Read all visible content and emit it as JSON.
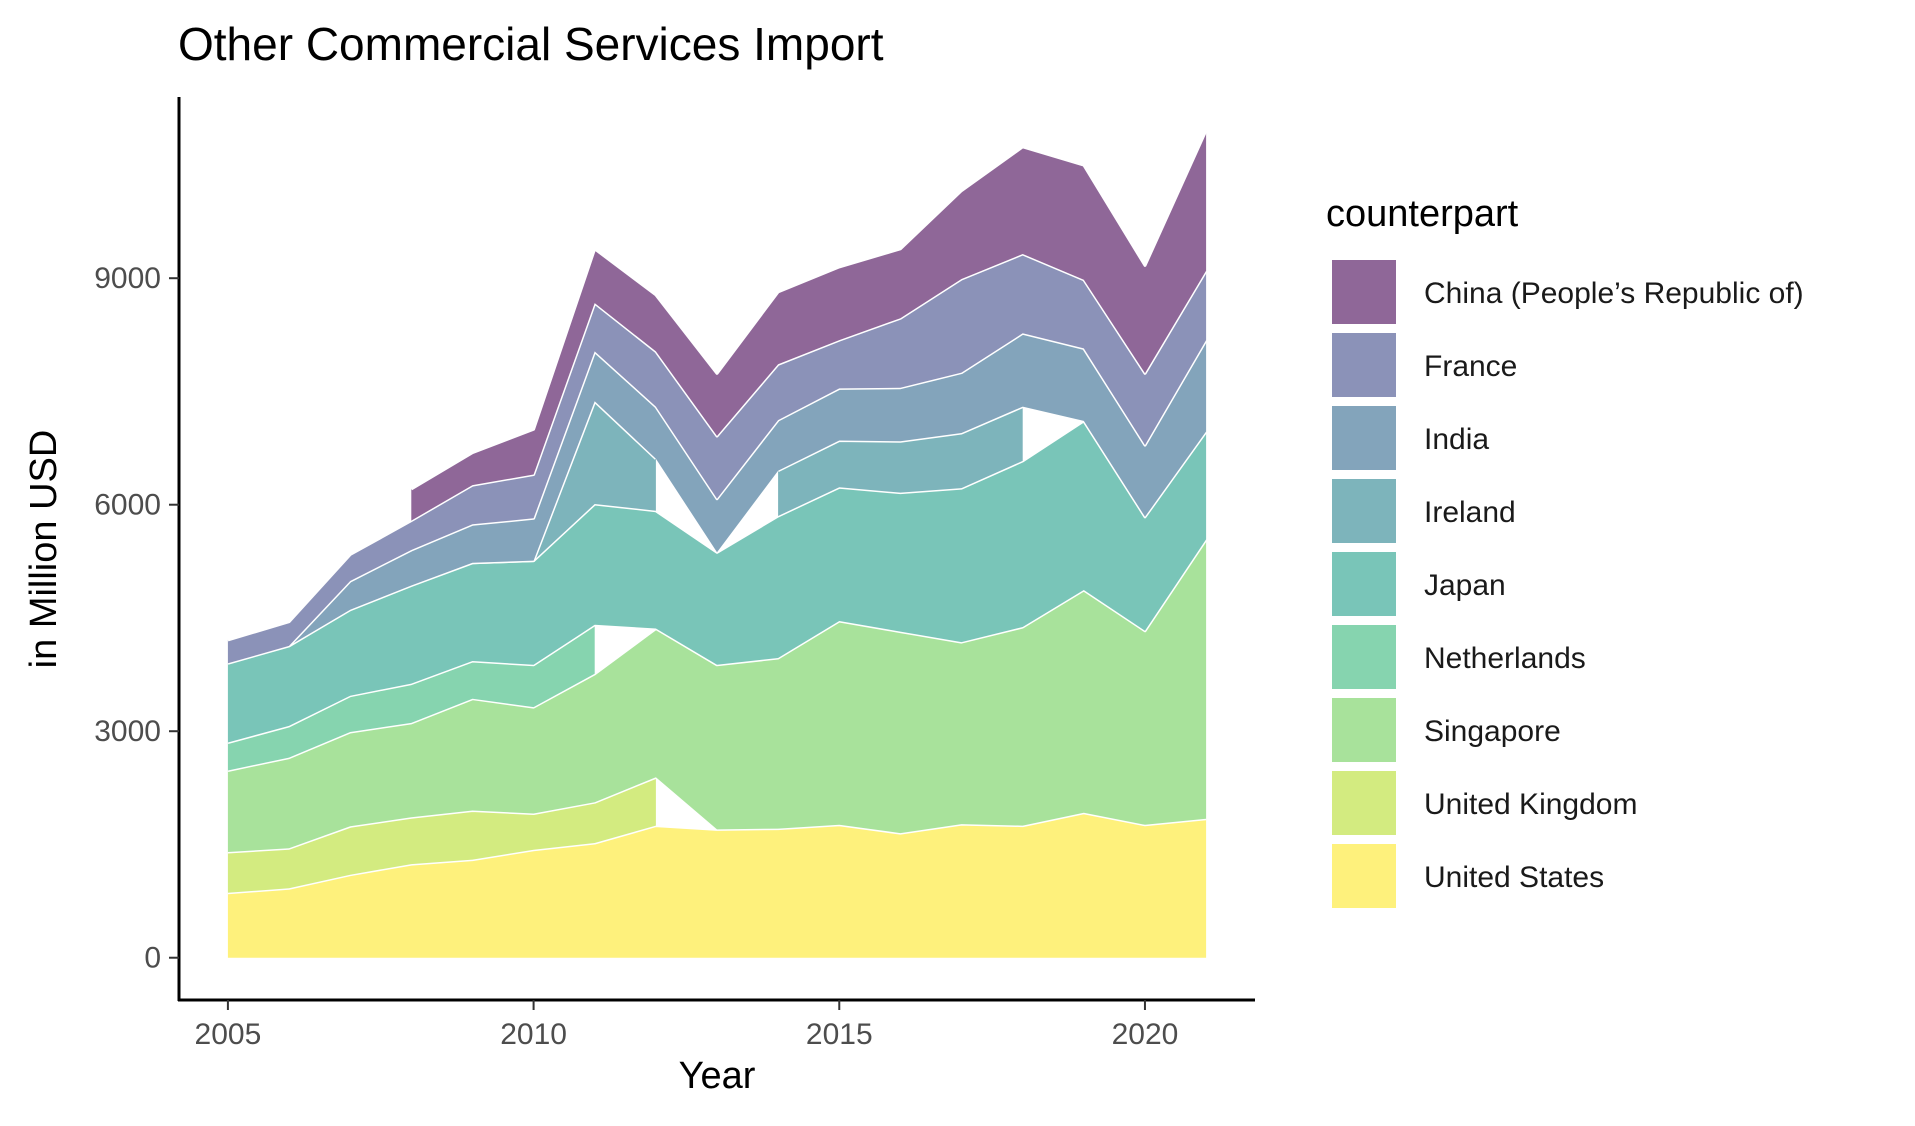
{
  "chart_data": {
    "type": "area",
    "title": "Other Commercial Services Import",
    "xlabel": "Year",
    "ylabel": "in Million USD",
    "xlim": [
      2004.2,
      2021.8
    ],
    "ylim": [
      -560,
      11400
    ],
    "xticks": [
      "2005",
      "2010",
      "2015",
      "2020"
    ],
    "yticks": [
      "0",
      "3000",
      "6000",
      "9000"
    ],
    "grid": false,
    "stacked": true,
    "legend": {
      "title": "counterpart",
      "position": "right",
      "entries": [
        "China (People’s Republic of)",
        "France",
        "India",
        "Ireland",
        "Japan",
        "Netherlands",
        "Singapore",
        "United Kingdom",
        "United States"
      ]
    },
    "series": [
      {
        "name": "United States",
        "color": "#FDE725",
        "points": [
          [
            2005,
            860
          ],
          [
            2006,
            920
          ],
          [
            2007,
            1100
          ],
          [
            2008,
            1240
          ],
          [
            2009,
            1300
          ],
          [
            2010,
            1430
          ],
          [
            2011,
            1520
          ],
          [
            2012,
            1750
          ],
          [
            2013,
            1700
          ],
          [
            2014,
            1710
          ],
          [
            2015,
            1760
          ],
          [
            2016,
            1650
          ],
          [
            2017,
            1770
          ],
          [
            2018,
            1750
          ],
          [
            2019,
            1920
          ],
          [
            2020,
            1760
          ],
          [
            2021,
            1840
          ]
        ]
      },
      {
        "name": "United Kingdom",
        "color": "#B5DE2B",
        "points": [
          [
            2005,
            540
          ],
          [
            2006,
            530
          ],
          [
            2007,
            640
          ],
          [
            2008,
            620
          ],
          [
            2009,
            650
          ],
          [
            2010,
            480
          ],
          [
            2011,
            540
          ],
          [
            2012,
            640
          ]
        ]
      },
      {
        "name": "Singapore",
        "color": "#6ECE58",
        "points": [
          [
            2005,
            1080
          ],
          [
            2006,
            1200
          ],
          [
            2007,
            1250
          ],
          [
            2008,
            1250
          ],
          [
            2009,
            1480
          ],
          [
            2010,
            1410
          ],
          [
            2011,
            1700
          ],
          [
            2012,
            1970
          ],
          [
            2013,
            2180
          ],
          [
            2014,
            2260
          ],
          [
            2015,
            2700
          ],
          [
            2016,
            2670
          ],
          [
            2017,
            2410
          ],
          [
            2018,
            2630
          ],
          [
            2019,
            2950
          ],
          [
            2020,
            2570
          ],
          [
            2021,
            3700
          ]
        ]
      },
      {
        "name": "Netherlands",
        "color": "#35B779",
        "points": [
          [
            2005,
            370
          ],
          [
            2006,
            420
          ],
          [
            2007,
            480
          ],
          [
            2008,
            520
          ],
          [
            2009,
            500
          ],
          [
            2010,
            560
          ],
          [
            2011,
            650
          ]
        ]
      },
      {
        "name": "Japan",
        "color": "#1F9E89",
        "points": [
          [
            2005,
            1050
          ],
          [
            2006,
            1060
          ],
          [
            2007,
            1140
          ],
          [
            2008,
            1300
          ],
          [
            2009,
            1300
          ],
          [
            2010,
            1380
          ],
          [
            2011,
            1600
          ],
          [
            2012,
            1560
          ],
          [
            2013,
            1490
          ],
          [
            2014,
            1880
          ],
          [
            2015,
            1770
          ],
          [
            2016,
            1840
          ],
          [
            2017,
            2040
          ],
          [
            2018,
            2200
          ],
          [
            2019,
            2240
          ],
          [
            2020,
            1510
          ],
          [
            2021,
            1430
          ]
        ]
      },
      {
        "name": "Ireland",
        "color": "#26828E",
        "points": [
          [
            2009,
            0
          ],
          [
            2010,
            0
          ],
          [
            2011,
            1360
          ],
          [
            2012,
            690
          ],
          [
            2014,
            600
          ],
          [
            2015,
            620
          ],
          [
            2016,
            680
          ],
          [
            2017,
            730
          ],
          [
            2018,
            720
          ]
        ]
      },
      {
        "name": "India",
        "color": "#31688E",
        "points": [
          [
            2006,
            0
          ],
          [
            2007,
            380
          ],
          [
            2008,
            470
          ],
          [
            2009,
            510
          ],
          [
            2010,
            560
          ],
          [
            2011,
            660
          ],
          [
            2012,
            690
          ],
          [
            2013,
            710
          ],
          [
            2014,
            670
          ],
          [
            2015,
            690
          ],
          [
            2016,
            710
          ],
          [
            2017,
            800
          ],
          [
            2018,
            970
          ],
          [
            2019,
            960
          ],
          [
            2020,
            950
          ],
          [
            2021,
            1210
          ]
        ]
      },
      {
        "name": "France",
        "color": "#3E4A89",
        "points": [
          [
            2005,
            310
          ],
          [
            2006,
            320
          ],
          [
            2007,
            350
          ],
          [
            2008,
            390
          ],
          [
            2009,
            520
          ],
          [
            2010,
            580
          ],
          [
            2011,
            640
          ],
          [
            2012,
            730
          ],
          [
            2013,
            830
          ],
          [
            2014,
            740
          ],
          [
            2015,
            640
          ],
          [
            2016,
            920
          ],
          [
            2017,
            1240
          ],
          [
            2018,
            1050
          ],
          [
            2019,
            910
          ],
          [
            2020,
            950
          ],
          [
            2021,
            920
          ]
        ]
      },
      {
        "name": "China (People’s Republic of)",
        "color": "#440154",
        "points": [
          [
            2008,
            420
          ],
          [
            2009,
            430
          ],
          [
            2010,
            600
          ],
          [
            2011,
            720
          ],
          [
            2012,
            750
          ],
          [
            2013,
            830
          ],
          [
            2014,
            960
          ],
          [
            2015,
            970
          ],
          [
            2016,
            920
          ],
          [
            2017,
            1170
          ],
          [
            2018,
            1420
          ],
          [
            2019,
            1520
          ],
          [
            2020,
            1430
          ],
          [
            2021,
            1860
          ]
        ]
      }
    ]
  }
}
